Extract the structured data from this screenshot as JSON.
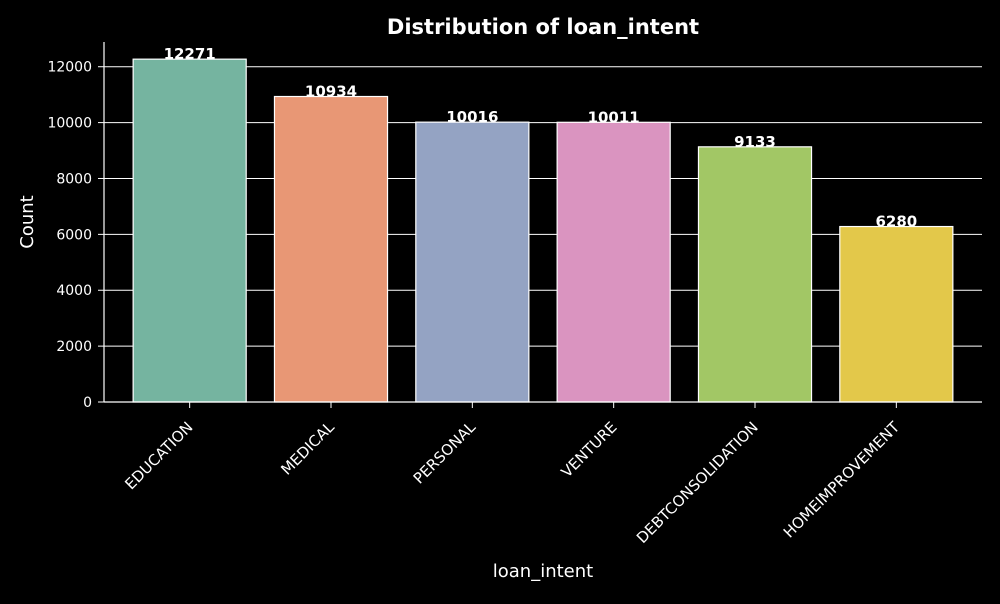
{
  "chart_data": {
    "type": "bar",
    "title": "Distribution of loan_intent",
    "xlabel": "loan_intent",
    "ylabel": "Count",
    "categories": [
      "EDUCATION",
      "MEDICAL",
      "PERSONAL",
      "VENTURE",
      "DEBTCONSOLIDATION",
      "HOMEIMPROVEMENT"
    ],
    "values": [
      12271,
      10934,
      10016,
      10011,
      9133,
      6280
    ],
    "colors": [
      "#75b4a0",
      "#e89775",
      "#94a3c3",
      "#da94c0",
      "#a2c765",
      "#e3c84a"
    ],
    "yticks": [
      0,
      2000,
      4000,
      6000,
      8000,
      10000,
      12000
    ],
    "ylim": [
      0,
      12885
    ],
    "grid": true,
    "background": "#000000",
    "text_color": "#ffffff"
  }
}
